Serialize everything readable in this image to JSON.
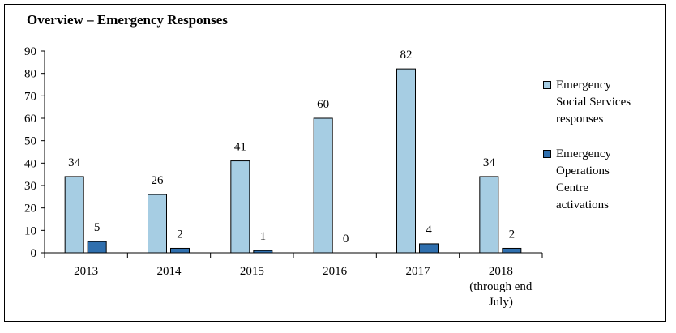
{
  "chart_data": {
    "type": "bar",
    "title": "Overview – Emergency Responses",
    "categories": [
      "2013",
      "2014",
      "2015",
      "2016",
      "2017",
      "2018 (through end July)"
    ],
    "category_lines": [
      [
        "2013"
      ],
      [
        "2014"
      ],
      [
        "2015"
      ],
      [
        "2016"
      ],
      [
        "2017"
      ],
      [
        "2018",
        "(through end",
        "July)"
      ]
    ],
    "series": [
      {
        "name": "Emergency Social Services responses",
        "values": [
          34,
          26,
          41,
          60,
          82,
          34
        ],
        "color": "#a6cde3"
      },
      {
        "name": "Emergency Operations Centre activations",
        "values": [
          5,
          2,
          1,
          0,
          4,
          2
        ],
        "color": "#2f6fae"
      }
    ],
    "ylim": [
      0,
      90
    ],
    "yticks": [
      0,
      10,
      20,
      30,
      40,
      50,
      60,
      70,
      80,
      90
    ],
    "grid": false,
    "legend_position": "right",
    "data_labels": true
  },
  "legend": [
    {
      "label": "Emergency Social Services responses",
      "lines": [
        "Emergency",
        "Social Services",
        "responses"
      ]
    },
    {
      "label": "Emergency Operations Centre activations",
      "lines": [
        "Emergency",
        "Operations",
        "Centre",
        "activations"
      ]
    }
  ]
}
